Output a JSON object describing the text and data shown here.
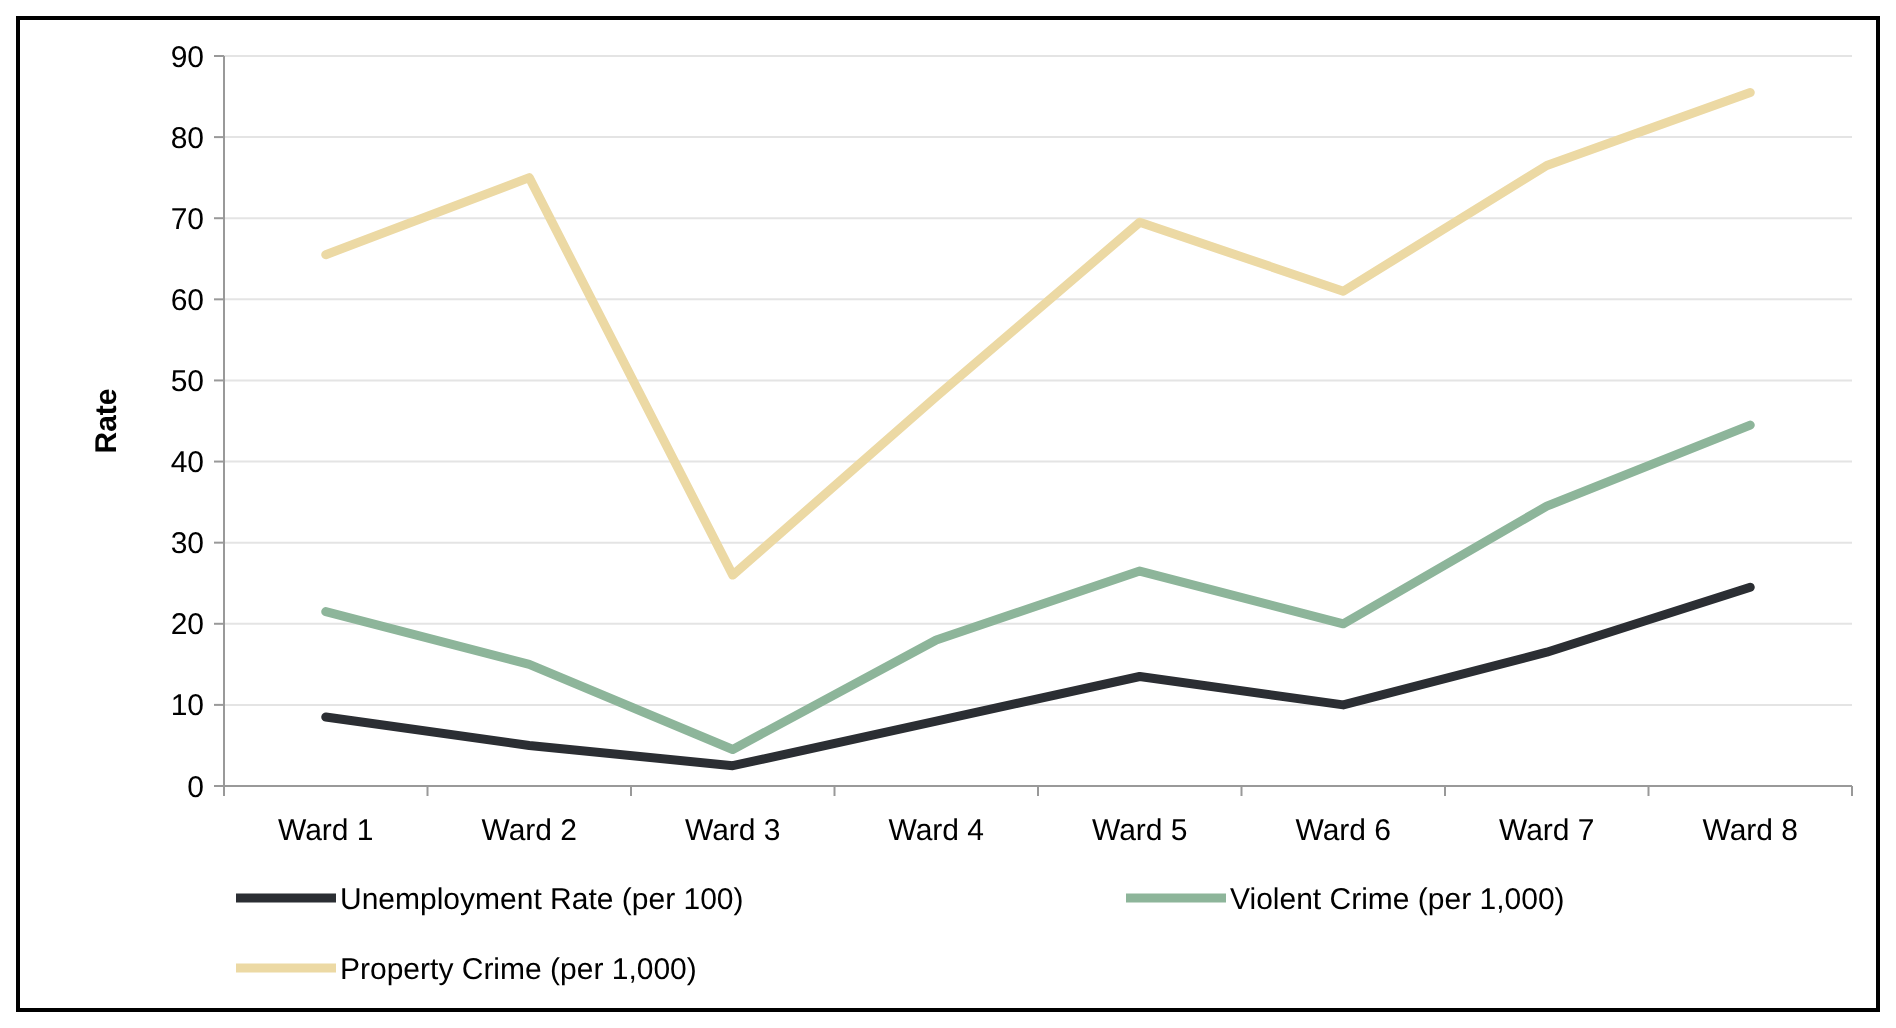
{
  "chart_data": {
    "type": "line",
    "ylabel": "Rate",
    "categories": [
      "Ward 1",
      "Ward 2",
      "Ward 3",
      "Ward 4",
      "Ward 5",
      "Ward 6",
      "Ward 7",
      "Ward 8"
    ],
    "series": [
      {
        "name": "Unemployment Rate (per 100)",
        "color": "#2b2e33",
        "values": [
          8.5,
          5,
          2.5,
          8,
          13.5,
          10,
          16.5,
          24.5
        ]
      },
      {
        "name": "Violent Crime (per 1,000)",
        "color": "#8db59a",
        "values": [
          21.5,
          15,
          4.5,
          18,
          26.5,
          20,
          34.5,
          44.5
        ]
      },
      {
        "name": "Property Crime (per 1,000)",
        "color": "#ecd9a4",
        "values": [
          65.5,
          75,
          26,
          48,
          69.5,
          61,
          76.5,
          85.5
        ]
      }
    ],
    "ylim": [
      0,
      90
    ],
    "yticks": [
      0,
      10,
      20,
      30,
      40,
      50,
      60,
      70,
      80,
      90
    ],
    "grid": "y",
    "legend": "bottom",
    "marker": "none",
    "line_style": "solid"
  }
}
